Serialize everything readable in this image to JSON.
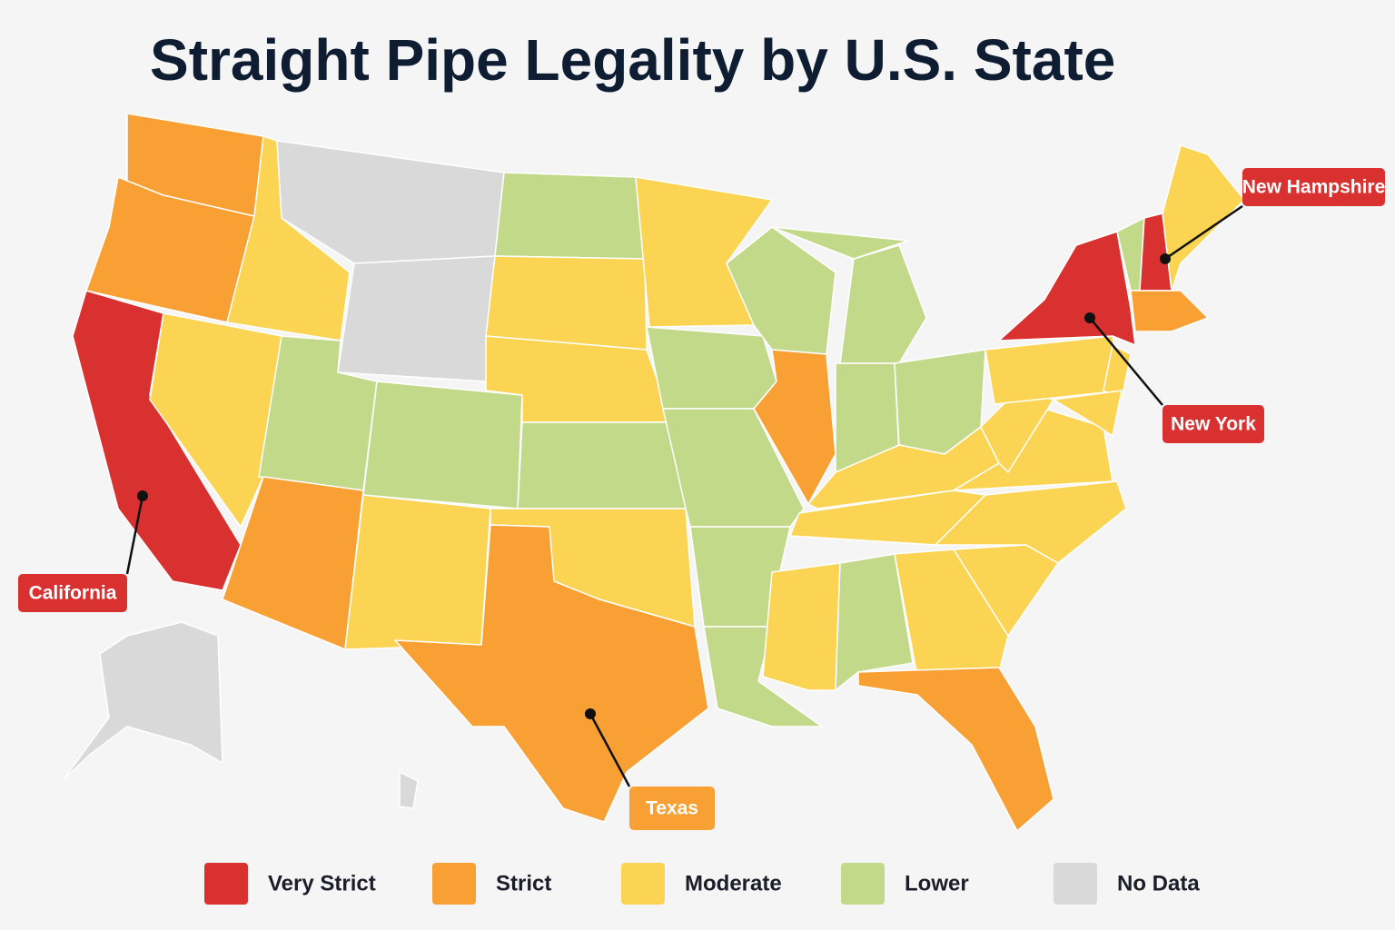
{
  "title": "Straight Pipe Legality by U.S. State",
  "legend": [
    {
      "label": "Very Strict",
      "color": "#d93030"
    },
    {
      "label": "Strict",
      "color": "#f9a034"
    },
    {
      "label": "Moderate",
      "color": "#fad452"
    },
    {
      "label": "Lower",
      "color": "#c3d98a"
    },
    {
      "label": "No Data",
      "color": "#d9d9d9"
    }
  ],
  "callouts": [
    {
      "label": "California"
    },
    {
      "label": "New Hampshire"
    },
    {
      "label": "New York"
    },
    {
      "label": "Texas"
    }
  ]
}
